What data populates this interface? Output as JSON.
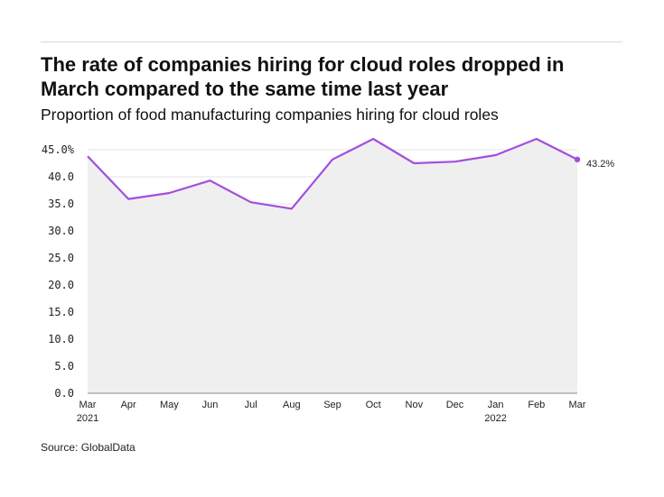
{
  "title": "The rate of companies hiring for cloud roles dropped in March compared to the same time last year",
  "subtitle": "Proportion of food manufacturing companies hiring for cloud roles",
  "source": "Source: GlobalData",
  "colors": {
    "line": "#a24ee0",
    "area": "#efefef",
    "grid": "#e3e3e3"
  },
  "chart_data": {
    "type": "area",
    "title": "The rate of companies hiring for cloud roles dropped in March compared to the same time last year",
    "subtitle": "Proportion of food manufacturing companies hiring for cloud roles",
    "categories": [
      "Mar",
      "Apr",
      "May",
      "Jun",
      "Jul",
      "Aug",
      "Sep",
      "Oct",
      "Nov",
      "Dec",
      "Jan",
      "Feb",
      "Mar"
    ],
    "year_labels": [
      "2021",
      "",
      "",
      "",
      "",
      "",
      "",
      "",
      "",
      "",
      "2022",
      "",
      ""
    ],
    "values": [
      43.8,
      35.9,
      37.0,
      39.3,
      35.3,
      34.1,
      43.2,
      47.0,
      42.5,
      42.8,
      44.0,
      47.0,
      43.2
    ],
    "ylim": [
      0,
      45
    ],
    "yticks": [
      "0.0",
      "5.0",
      "10.0",
      "15.0",
      "20.0",
      "25.0",
      "30.0",
      "35.0",
      "40.0",
      "45.0%"
    ],
    "end_label": "43.2%",
    "grid": true,
    "xlabel": "",
    "ylabel": ""
  }
}
